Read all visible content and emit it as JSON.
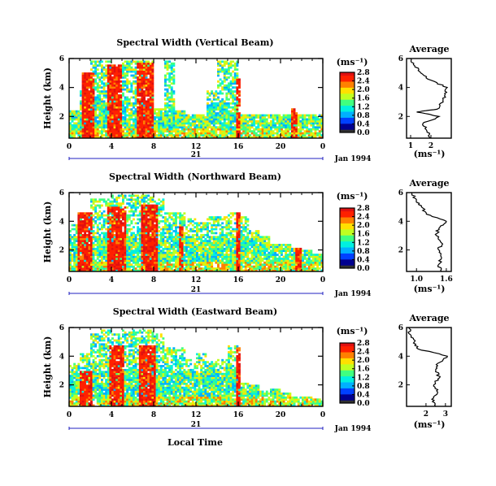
{
  "figure": {
    "x_axis_label": "Local Time",
    "date_label": "Jan 1994",
    "day_label": "21",
    "time_ticks": [
      "0",
      "4",
      "8",
      "12",
      "16",
      "20",
      "0"
    ],
    "height_ticks": [
      "2",
      "4",
      "6"
    ],
    "y_axis_label": "Height (km)",
    "unit_label": "(ms⁻¹)",
    "average_title": "Average",
    "colormap": [
      "#303030",
      "#000090",
      "#0040ff",
      "#00b0ff",
      "#00f0e0",
      "#40ff80",
      "#c0ff20",
      "#ffe000",
      "#ff8000",
      "#ff2000",
      "#e01010"
    ]
  },
  "chart_data": [
    {
      "type": "heatmap",
      "title": "Spectral Width (Vertical Beam)",
      "xlabel": "",
      "ylabel": "Height (km)",
      "xlim": [
        0,
        24
      ],
      "ylim": [
        0.5,
        6
      ],
      "colorbar": {
        "unit": "(ms⁻¹)",
        "ticks": [
          "0.0",
          "0.4",
          "0.8",
          "1.2",
          "1.6",
          "2.0",
          "2.4",
          "2.8"
        ],
        "range": [
          0,
          2.8
        ]
      },
      "max_height_km": [
        2.4,
        3.8,
        5.8,
        5.8,
        3.8,
        5.8,
        5.8,
        5.8,
        2.6,
        5.8,
        2.4,
        2.2,
        2.2,
        3.8,
        5.8,
        5.8,
        2.2,
        2.2,
        2.2,
        2.2,
        2.2,
        2.2,
        2.2,
        2.2
      ],
      "bursts": [
        {
          "t": 1.8,
          "w": 0.6,
          "top": 5.0
        },
        {
          "t": 4.3,
          "w": 0.7,
          "top": 5.6
        },
        {
          "t": 7.2,
          "w": 0.8,
          "top": 5.7
        },
        {
          "t": 16.0,
          "w": 0.2,
          "top": 4.6
        },
        {
          "t": 21.3,
          "w": 0.3,
          "top": 2.5
        }
      ],
      "average": {
        "xlabel": "(ms⁻¹)",
        "xlim": [
          0.8,
          3.0
        ],
        "xticks": [
          "1",
          "2"
        ],
        "yticks": [
          "2",
          "4",
          "6"
        ],
        "height_km": [
          0.5,
          1.0,
          1.5,
          2.0,
          2.3,
          2.5,
          3.0,
          3.5,
          4.0,
          4.5,
          5.0,
          5.5,
          6.0
        ],
        "value": [
          2.0,
          1.8,
          1.6,
          2.4,
          1.3,
          2.3,
          2.6,
          2.7,
          2.8,
          2.0,
          1.5,
          1.2,
          1.0
        ]
      }
    },
    {
      "type": "heatmap",
      "title": "Spectral Width (Northward Beam)",
      "xlabel": "",
      "ylabel": "Height (km)",
      "xlim": [
        0,
        24
      ],
      "ylim": [
        0.5,
        6
      ],
      "colorbar": {
        "unit": "(ms⁻¹)",
        "ticks": [
          "0.0",
          "0.4",
          "0.8",
          "1.2",
          "1.6",
          "2.0",
          "2.4",
          "2.8"
        ],
        "range": [
          0,
          2.8
        ]
      },
      "max_height_km": [
        3.8,
        4.6,
        5.6,
        5.6,
        5.8,
        5.8,
        5.8,
        5.8,
        5.6,
        4.6,
        4.6,
        4.2,
        4.0,
        4.4,
        4.4,
        4.6,
        4.4,
        3.4,
        3.0,
        2.4,
        2.4,
        2.2,
        2.0,
        1.8
      ],
      "bursts": [
        {
          "t": 1.5,
          "w": 0.7,
          "top": 4.6
        },
        {
          "t": 4.5,
          "w": 0.8,
          "top": 5.0
        },
        {
          "t": 7.6,
          "w": 0.8,
          "top": 5.2
        },
        {
          "t": 10.6,
          "w": 0.3,
          "top": 3.6
        },
        {
          "t": 16.0,
          "w": 0.2,
          "top": 4.6
        },
        {
          "t": 21.6,
          "w": 0.3,
          "top": 2.2
        }
      ],
      "average": {
        "xlabel": "(ms⁻¹)",
        "xlim": [
          0.8,
          1.7
        ],
        "xticks": [
          "1.0",
          "1.6"
        ],
        "yticks": [
          "2",
          "4",
          "6"
        ],
        "height_km": [
          0.5,
          1.0,
          1.5,
          2.0,
          2.5,
          3.0,
          3.5,
          4.0,
          4.5,
          5.0,
          5.5,
          6.0
        ],
        "value": [
          1.5,
          1.45,
          1.5,
          1.45,
          1.5,
          1.4,
          1.45,
          1.6,
          1.2,
          1.1,
          1.0,
          0.9
        ]
      }
    },
    {
      "type": "heatmap",
      "title": "Spectral Width (Eastward Beam)",
      "xlabel": "Local Time",
      "ylabel": "Height (km)",
      "xlim": [
        0,
        24
      ],
      "ylim": [
        0.5,
        6
      ],
      "colorbar": {
        "unit": "(ms⁻¹)",
        "ticks": [
          "0.0",
          "0.4",
          "0.8",
          "1.2",
          "1.6",
          "2.0",
          "2.4",
          "2.8"
        ],
        "range": [
          0,
          2.8
        ]
      },
      "max_height_km": [
        3.6,
        4.2,
        5.6,
        5.8,
        5.6,
        5.8,
        5.8,
        5.8,
        5.6,
        4.6,
        4.6,
        3.8,
        4.2,
        3.6,
        3.8,
        4.8,
        2.2,
        2.0,
        1.6,
        1.8,
        1.4,
        1.2,
        1.2,
        1.0
      ],
      "bursts": [
        {
          "t": 1.6,
          "w": 0.6,
          "top": 3.0
        },
        {
          "t": 4.6,
          "w": 0.7,
          "top": 4.8
        },
        {
          "t": 7.4,
          "w": 0.8,
          "top": 4.8
        },
        {
          "t": 16.0,
          "w": 0.2,
          "top": 4.6
        }
      ],
      "average": {
        "xlabel": "(ms⁻¹)",
        "xlim": [
          1.0,
          3.3
        ],
        "xticks": [
          "2",
          "3"
        ],
        "yticks": [
          "2",
          "4",
          "6"
        ],
        "height_km": [
          0.5,
          1.0,
          1.5,
          2.0,
          2.5,
          3.0,
          3.5,
          4.0,
          4.5,
          5.0,
          5.5,
          6.0
        ],
        "value": [
          2.5,
          2.3,
          2.6,
          2.4,
          2.7,
          2.5,
          2.6,
          3.1,
          1.6,
          1.4,
          1.2,
          1.1
        ]
      }
    }
  ]
}
